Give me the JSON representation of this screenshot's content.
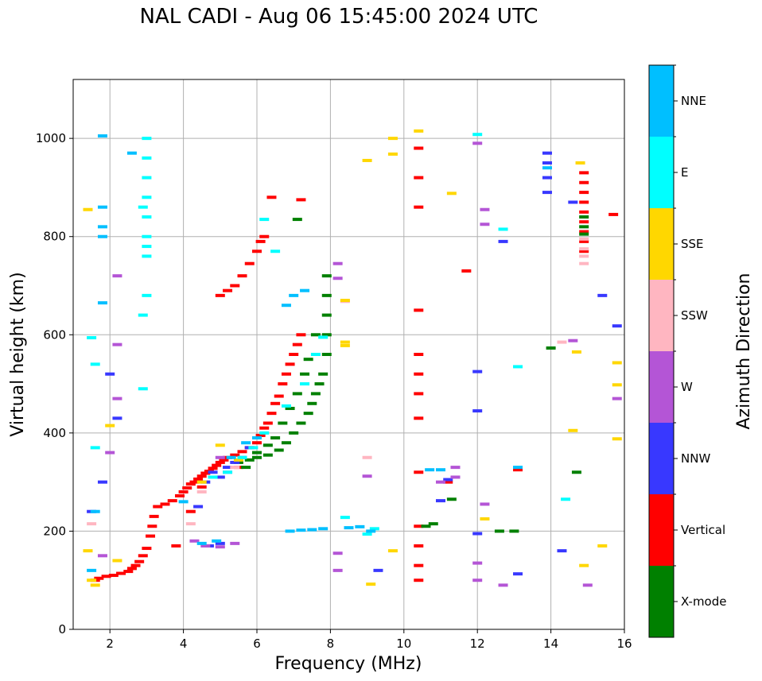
{
  "chart_data": {
    "type": "scatter",
    "title": "NAL CADI - Aug 06 15:45:00 2024 UTC",
    "xlabel": "Frequency (MHz)",
    "ylabel": "Virtual height (km)",
    "xlim": [
      1.0,
      16.0
    ],
    "ylim": [
      0,
      1120
    ],
    "xticks": [
      2,
      4,
      6,
      8,
      10,
      12,
      14,
      16
    ],
    "yticks": [
      0,
      200,
      400,
      600,
      800,
      1000
    ],
    "grid": true,
    "colorbar": {
      "label": "Azimuth Direction",
      "categories": [
        "X-mode",
        "Vertical",
        "NNW",
        "W",
        "SSW",
        "SSE",
        "E",
        "NNE"
      ],
      "colors": {
        "X-mode": "#008000",
        "Vertical": "#ff0000",
        "NNW": "#3838ff",
        "W": "#b455d6",
        "SSW": "#ffb6c1",
        "SSE": "#ffd700",
        "E": "#00ffff",
        "NNE": "#00bfff"
      }
    },
    "series": [
      {
        "name": "Vertical",
        "points": [
          [
            1.6,
            100
          ],
          [
            1.7,
            104
          ],
          [
            1.9,
            108
          ],
          [
            2.1,
            110
          ],
          [
            2.3,
            114
          ],
          [
            2.5,
            118
          ],
          [
            2.6,
            124
          ],
          [
            2.7,
            130
          ],
          [
            2.8,
            138
          ],
          [
            2.9,
            150
          ],
          [
            3.0,
            165
          ],
          [
            3.1,
            190
          ],
          [
            3.15,
            210
          ],
          [
            3.2,
            230
          ],
          [
            3.3,
            250
          ],
          [
            3.5,
            255
          ],
          [
            3.7,
            262
          ],
          [
            3.9,
            272
          ],
          [
            4.0,
            280
          ],
          [
            4.1,
            288
          ],
          [
            4.2,
            296
          ],
          [
            4.3,
            300
          ],
          [
            4.4,
            306
          ],
          [
            4.5,
            312
          ],
          [
            4.6,
            318
          ],
          [
            4.7,
            322
          ],
          [
            4.8,
            328
          ],
          [
            4.9,
            334
          ],
          [
            5.0,
            340
          ],
          [
            5.1,
            345
          ],
          [
            5.2,
            350
          ],
          [
            5.4,
            355
          ],
          [
            5.6,
            362
          ],
          [
            5.8,
            370
          ],
          [
            6.0,
            380
          ],
          [
            6.1,
            395
          ],
          [
            6.2,
            410
          ],
          [
            6.3,
            420
          ],
          [
            6.4,
            440
          ],
          [
            6.5,
            460
          ],
          [
            6.6,
            475
          ],
          [
            6.7,
            500
          ],
          [
            6.8,
            520
          ],
          [
            6.9,
            540
          ],
          [
            7.0,
            560
          ],
          [
            7.1,
            580
          ],
          [
            7.2,
            600
          ],
          [
            5.0,
            680
          ],
          [
            5.2,
            690
          ],
          [
            5.4,
            700
          ],
          [
            5.6,
            720
          ],
          [
            5.8,
            745
          ],
          [
            6.0,
            770
          ],
          [
            6.1,
            790
          ],
          [
            6.2,
            800
          ],
          [
            6.4,
            880
          ],
          [
            3.8,
            170
          ],
          [
            4.2,
            240
          ],
          [
            4.5,
            290
          ],
          [
            5.5,
            330
          ],
          [
            10.4,
            650
          ],
          [
            10.4,
            560
          ],
          [
            10.4,
            520
          ],
          [
            10.4,
            480
          ],
          [
            10.4,
            430
          ],
          [
            10.4,
            320
          ],
          [
            10.4,
            210
          ],
          [
            10.4,
            170
          ],
          [
            10.4,
            130
          ],
          [
            10.4,
            100
          ],
          [
            10.4,
            920
          ],
          [
            10.4,
            980
          ],
          [
            10.4,
            860
          ],
          [
            11.2,
            300
          ],
          [
            13.1,
            325
          ],
          [
            14.9,
            930
          ],
          [
            14.9,
            910
          ],
          [
            14.9,
            890
          ],
          [
            14.9,
            870
          ],
          [
            14.9,
            850
          ],
          [
            14.9,
            830
          ],
          [
            14.9,
            810
          ],
          [
            14.9,
            790
          ],
          [
            14.9,
            770
          ],
          [
            15.7,
            845
          ],
          [
            11.7,
            730
          ],
          [
            7.2,
            875
          ]
        ]
      },
      {
        "name": "X-mode",
        "points": [
          [
            5.5,
            340
          ],
          [
            5.8,
            345
          ],
          [
            6.0,
            350
          ],
          [
            6.3,
            355
          ],
          [
            6.6,
            365
          ],
          [
            6.8,
            380
          ],
          [
            7.0,
            400
          ],
          [
            7.2,
            420
          ],
          [
            7.4,
            440
          ],
          [
            7.5,
            460
          ],
          [
            7.6,
            480
          ],
          [
            7.7,
            500
          ],
          [
            7.8,
            520
          ],
          [
            7.9,
            560
          ],
          [
            7.9,
            600
          ],
          [
            7.9,
            640
          ],
          [
            7.9,
            680
          ],
          [
            7.9,
            720
          ],
          [
            7.4,
            550
          ],
          [
            7.3,
            520
          ],
          [
            7.1,
            480
          ],
          [
            6.9,
            450
          ],
          [
            6.7,
            420
          ],
          [
            6.5,
            390
          ],
          [
            6.3,
            375
          ],
          [
            6.0,
            360
          ],
          [
            5.7,
            330
          ],
          [
            7.6,
            600
          ],
          [
            10.6,
            210
          ],
          [
            10.8,
            215
          ],
          [
            11.3,
            265
          ],
          [
            12.6,
            200
          ],
          [
            13.0,
            200
          ],
          [
            14.7,
            320
          ],
          [
            14.9,
            840
          ],
          [
            14.9,
            805
          ],
          [
            14.9,
            820
          ],
          [
            14.0,
            573
          ],
          [
            7.1,
            835
          ]
        ]
      },
      {
        "name": "NNW",
        "points": [
          [
            1.5,
            240
          ],
          [
            1.8,
            300
          ],
          [
            2.0,
            520
          ],
          [
            2.2,
            430
          ],
          [
            4.4,
            250
          ],
          [
            4.6,
            300
          ],
          [
            4.8,
            320
          ],
          [
            5.0,
            310
          ],
          [
            5.2,
            330
          ],
          [
            5.4,
            340
          ],
          [
            5.6,
            350
          ],
          [
            5.8,
            370
          ],
          [
            4.7,
            170
          ],
          [
            5.0,
            175
          ],
          [
            13.9,
            890
          ],
          [
            13.9,
            920
          ],
          [
            13.9,
            950
          ],
          [
            13.9,
            970
          ],
          [
            15.4,
            680
          ],
          [
            15.8,
            618
          ],
          [
            11.0,
            262
          ],
          [
            11.2,
            305
          ],
          [
            14.6,
            870
          ],
          [
            14.3,
            160
          ],
          [
            12.7,
            790
          ],
          [
            9.3,
            120
          ],
          [
            13.1,
            113
          ],
          [
            12.0,
            525
          ],
          [
            12.0,
            445
          ],
          [
            12.0,
            195
          ]
        ]
      },
      {
        "name": "W",
        "points": [
          [
            1.8,
            150
          ],
          [
            2.0,
            360
          ],
          [
            2.2,
            470
          ],
          [
            2.2,
            580
          ],
          [
            2.2,
            720
          ],
          [
            4.3,
            180
          ],
          [
            4.6,
            170
          ],
          [
            5.0,
            168
          ],
          [
            5.4,
            175
          ],
          [
            5.0,
            350
          ],
          [
            5.2,
            320
          ],
          [
            11.4,
            310
          ],
          [
            11.0,
            300
          ],
          [
            12.2,
            255
          ],
          [
            12.0,
            990
          ],
          [
            12.2,
            855
          ],
          [
            12.2,
            825
          ],
          [
            8.2,
            745
          ],
          [
            8.2,
            715
          ],
          [
            8.2,
            155
          ],
          [
            8.2,
            120
          ],
          [
            9.0,
            312
          ],
          [
            11.4,
            330
          ],
          [
            14.6,
            588
          ],
          [
            15.0,
            90
          ],
          [
            12.7,
            90
          ],
          [
            15.8,
            470
          ],
          [
            12.0,
            135
          ],
          [
            12.0,
            100
          ]
        ]
      },
      {
        "name": "SSW",
        "points": [
          [
            1.5,
            215
          ],
          [
            4.2,
            215
          ],
          [
            8.4,
            668
          ],
          [
            14.3,
            585
          ],
          [
            14.9,
            745
          ],
          [
            14.9,
            760
          ],
          [
            14.9,
            775
          ],
          [
            14.9,
            795
          ],
          [
            9.0,
            350
          ],
          [
            5.4,
            330
          ],
          [
            4.5,
            280
          ]
        ]
      },
      {
        "name": "SSE",
        "points": [
          [
            1.5,
            100
          ],
          [
            1.6,
            90
          ],
          [
            2.0,
            415
          ],
          [
            2.2,
            140
          ],
          [
            4.5,
            300
          ],
          [
            5.0,
            375
          ],
          [
            5.5,
            345
          ],
          [
            8.4,
            670
          ],
          [
            8.4,
            585
          ],
          [
            8.4,
            578
          ],
          [
            9.0,
            955
          ],
          [
            9.7,
            1000
          ],
          [
            9.7,
            968
          ],
          [
            10.4,
            1015
          ],
          [
            11.3,
            888
          ],
          [
            14.8,
            950
          ],
          [
            14.7,
            565
          ],
          [
            14.6,
            405
          ],
          [
            14.9,
            130
          ],
          [
            15.4,
            170
          ],
          [
            15.8,
            543
          ],
          [
            15.8,
            498
          ],
          [
            15.8,
            388
          ],
          [
            9.1,
            92
          ],
          [
            12.2,
            225
          ],
          [
            9.7,
            160
          ],
          [
            1.4,
            855
          ],
          [
            1.4,
            160
          ]
        ]
      },
      {
        "name": "E",
        "points": [
          [
            3.0,
            1000
          ],
          [
            3.0,
            960
          ],
          [
            3.0,
            920
          ],
          [
            3.0,
            880
          ],
          [
            3.0,
            840
          ],
          [
            3.0,
            800
          ],
          [
            3.0,
            780
          ],
          [
            3.0,
            760
          ],
          [
            3.0,
            680
          ],
          [
            2.9,
            860
          ],
          [
            2.9,
            640
          ],
          [
            2.9,
            490
          ],
          [
            4.8,
            310
          ],
          [
            5.2,
            320
          ],
          [
            5.6,
            350
          ],
          [
            5.9,
            370
          ],
          [
            6.2,
            400
          ],
          [
            6.8,
            455
          ],
          [
            7.3,
            500
          ],
          [
            7.6,
            560
          ],
          [
            7.8,
            595
          ],
          [
            6.2,
            835
          ],
          [
            6.5,
            770
          ],
          [
            12.7,
            815
          ],
          [
            13.1,
            535
          ],
          [
            14.4,
            265
          ],
          [
            12.0,
            1008
          ],
          [
            8.4,
            228
          ],
          [
            9.0,
            194
          ],
          [
            9.2,
            205
          ],
          [
            1.5,
            594
          ],
          [
            1.6,
            540
          ],
          [
            1.6,
            370
          ]
        ]
      },
      {
        "name": "NNE",
        "points": [
          [
            1.8,
            1005
          ],
          [
            1.8,
            860
          ],
          [
            1.8,
            820
          ],
          [
            1.8,
            800
          ],
          [
            1.8,
            665
          ],
          [
            1.6,
            240
          ],
          [
            1.5,
            120
          ],
          [
            2.6,
            970
          ],
          [
            4.0,
            260
          ],
          [
            4.5,
            175
          ],
          [
            4.9,
            180
          ],
          [
            5.3,
            350
          ],
          [
            5.7,
            380
          ],
          [
            6.0,
            390
          ],
          [
            6.8,
            660
          ],
          [
            7.0,
            680
          ],
          [
            7.3,
            690
          ],
          [
            6.9,
            200
          ],
          [
            7.2,
            202
          ],
          [
            7.5,
            203
          ],
          [
            7.8,
            205
          ],
          [
            8.5,
            207
          ],
          [
            8.8,
            209
          ],
          [
            9.1,
            200
          ],
          [
            13.1,
            330
          ],
          [
            13.9,
            940
          ],
          [
            10.7,
            325
          ],
          [
            11.0,
            325
          ]
        ]
      }
    ]
  }
}
